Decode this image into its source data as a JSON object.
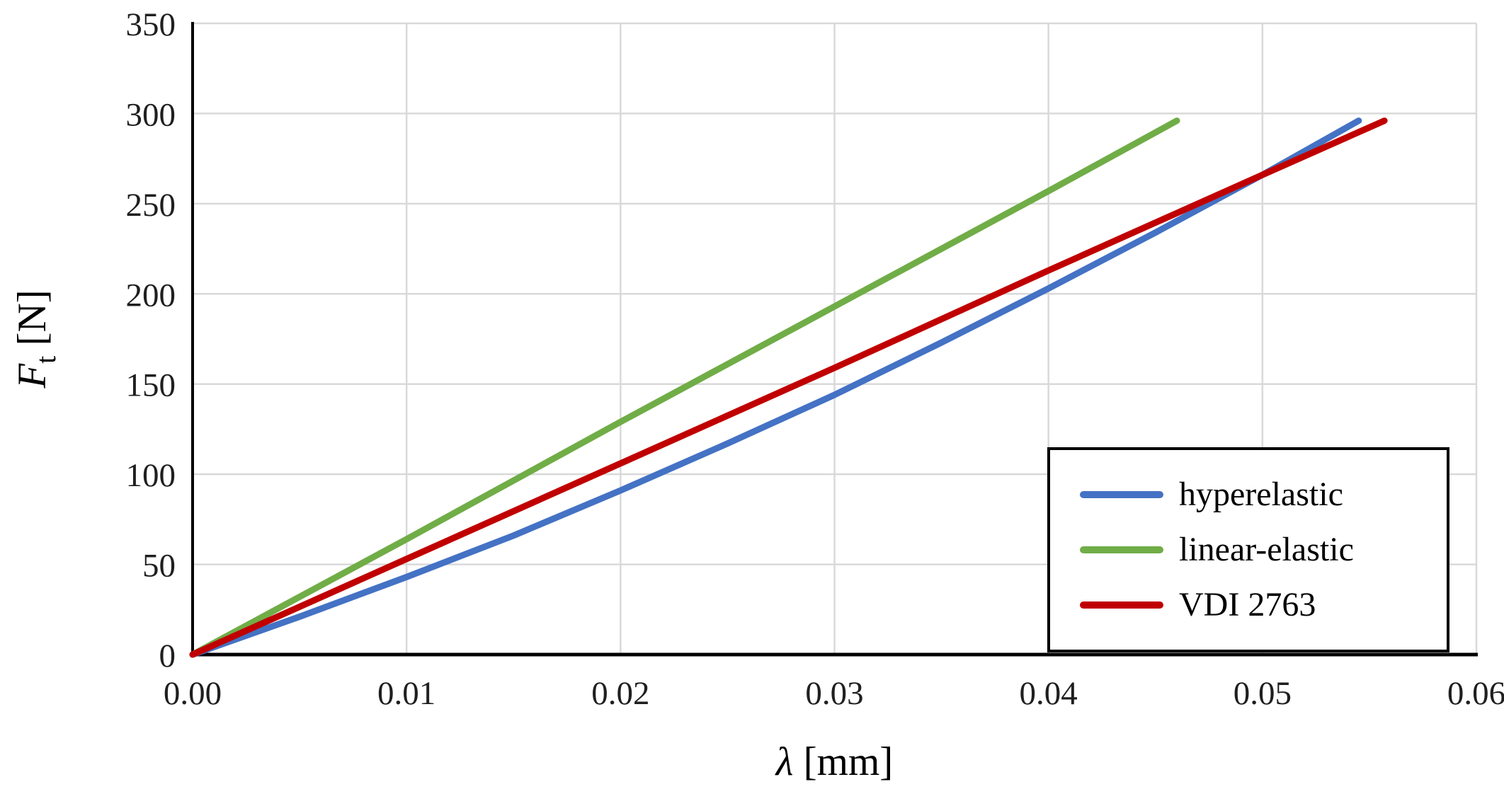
{
  "page": {
    "background": "#ffffff"
  },
  "chart_data": {
    "type": "line",
    "title": "",
    "xlabel": {
      "italic_part": "λ",
      "rest": " [mm]"
    },
    "ylabel": {
      "italic_part": "F",
      "sub": "t",
      "rest": " [N]"
    },
    "xlim": [
      0,
      0.06
    ],
    "ylim": [
      0,
      350
    ],
    "grid": true,
    "legend_position": "inside-bottom-right",
    "colors": {
      "grid": "#d9d9d9",
      "axis": "#000000",
      "text": "#1f1f1f"
    },
    "x_ticks": [
      {
        "value": 0,
        "label": "0.00"
      },
      {
        "value": 0.01,
        "label": "0.01"
      },
      {
        "value": 0.02,
        "label": "0.02"
      },
      {
        "value": 0.03,
        "label": "0.03"
      },
      {
        "value": 0.04,
        "label": "0.04"
      },
      {
        "value": 0.05,
        "label": "0.05"
      },
      {
        "value": 0.06,
        "label": "0.06"
      }
    ],
    "y_ticks": [
      {
        "value": 0,
        "label": "0"
      },
      {
        "value": 50,
        "label": "50"
      },
      {
        "value": 100,
        "label": "100"
      },
      {
        "value": 150,
        "label": "150"
      },
      {
        "value": 200,
        "label": "200"
      },
      {
        "value": 250,
        "label": "250"
      },
      {
        "value": 300,
        "label": "300"
      },
      {
        "value": 350,
        "label": "350"
      }
    ],
    "series": [
      {
        "name": "hyperelastic",
        "color": "#4472c4",
        "points": [
          [
            0,
            0
          ],
          [
            0.005,
            21
          ],
          [
            0.01,
            43
          ],
          [
            0.015,
            66
          ],
          [
            0.02,
            91
          ],
          [
            0.025,
            117
          ],
          [
            0.03,
            144
          ],
          [
            0.035,
            173
          ],
          [
            0.04,
            203
          ],
          [
            0.045,
            234
          ],
          [
            0.05,
            266
          ],
          [
            0.0545,
            296
          ]
        ]
      },
      {
        "name": "linear-elastic",
        "color": "#70ad47",
        "points": [
          [
            0,
            0
          ],
          [
            0.01,
            64
          ],
          [
            0.02,
            129
          ],
          [
            0.03,
            193
          ],
          [
            0.04,
            257
          ],
          [
            0.046,
            296
          ]
        ]
      },
      {
        "name": "VDI 2763",
        "color": "#c00000",
        "points": [
          [
            0,
            0
          ],
          [
            0.01,
            53
          ],
          [
            0.02,
            106
          ],
          [
            0.03,
            159
          ],
          [
            0.04,
            213
          ],
          [
            0.05,
            266
          ],
          [
            0.0557,
            296
          ]
        ]
      }
    ]
  }
}
